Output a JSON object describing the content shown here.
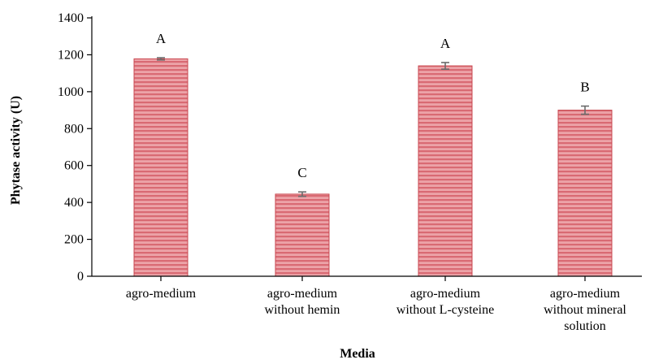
{
  "chart_data": {
    "type": "bar",
    "title": "",
    "xlabel": "Media",
    "ylabel": "Phytase activity (U)",
    "ylim": [
      0,
      1400
    ],
    "yticks": [
      0,
      200,
      400,
      600,
      800,
      1000,
      1200,
      1400
    ],
    "grid": false,
    "legend": "none",
    "categories": [
      [
        "agro-medium"
      ],
      [
        "agro-medium",
        "without hemin"
      ],
      [
        "agro-medium",
        "without L-cysteine"
      ],
      [
        "agro-medium",
        "without mineral",
        "solution"
      ]
    ],
    "values": [
      1178,
      445,
      1140,
      900
    ],
    "errors": [
      6,
      12,
      18,
      22
    ],
    "annotations": [
      "A",
      "C",
      "A",
      "B"
    ],
    "colors": {
      "bar_fill": "#eca3a8",
      "bar_stripe": "#d96a73",
      "bar_edge": "#c9474f",
      "error_bar": "#6b6b6b"
    }
  }
}
